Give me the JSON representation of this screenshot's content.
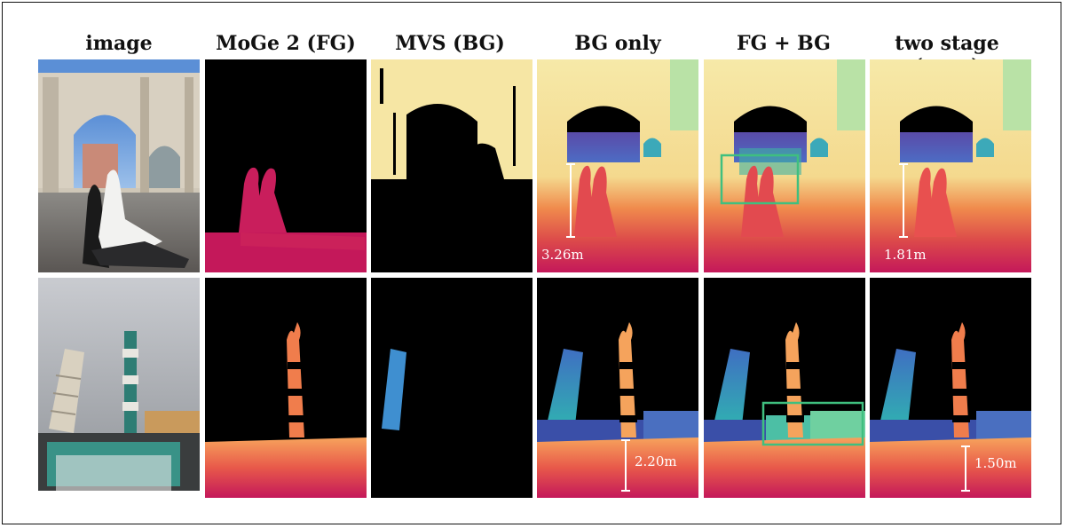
{
  "columns": [
    {
      "id": "image",
      "label": "image"
    },
    {
      "id": "moge",
      "label": "MoGe 2 (FG)"
    },
    {
      "id": "mvs",
      "label": "MVS (BG)"
    },
    {
      "id": "bgonly",
      "label": "BG only"
    },
    {
      "id": "fgbg",
      "label": "FG + BG"
    },
    {
      "id": "twostage",
      "label": "two stage (ours)"
    }
  ],
  "measurements": {
    "row1_bg_only": "3.26m",
    "row1_two_stage": "1.81m",
    "row2_bg_only": "2.20m",
    "row2_two_stage": "1.50m"
  },
  "colors": {
    "highlight_box": "#3fbf7f",
    "far_depth": "#f6e6a4",
    "near_depth": "#c4185a"
  }
}
